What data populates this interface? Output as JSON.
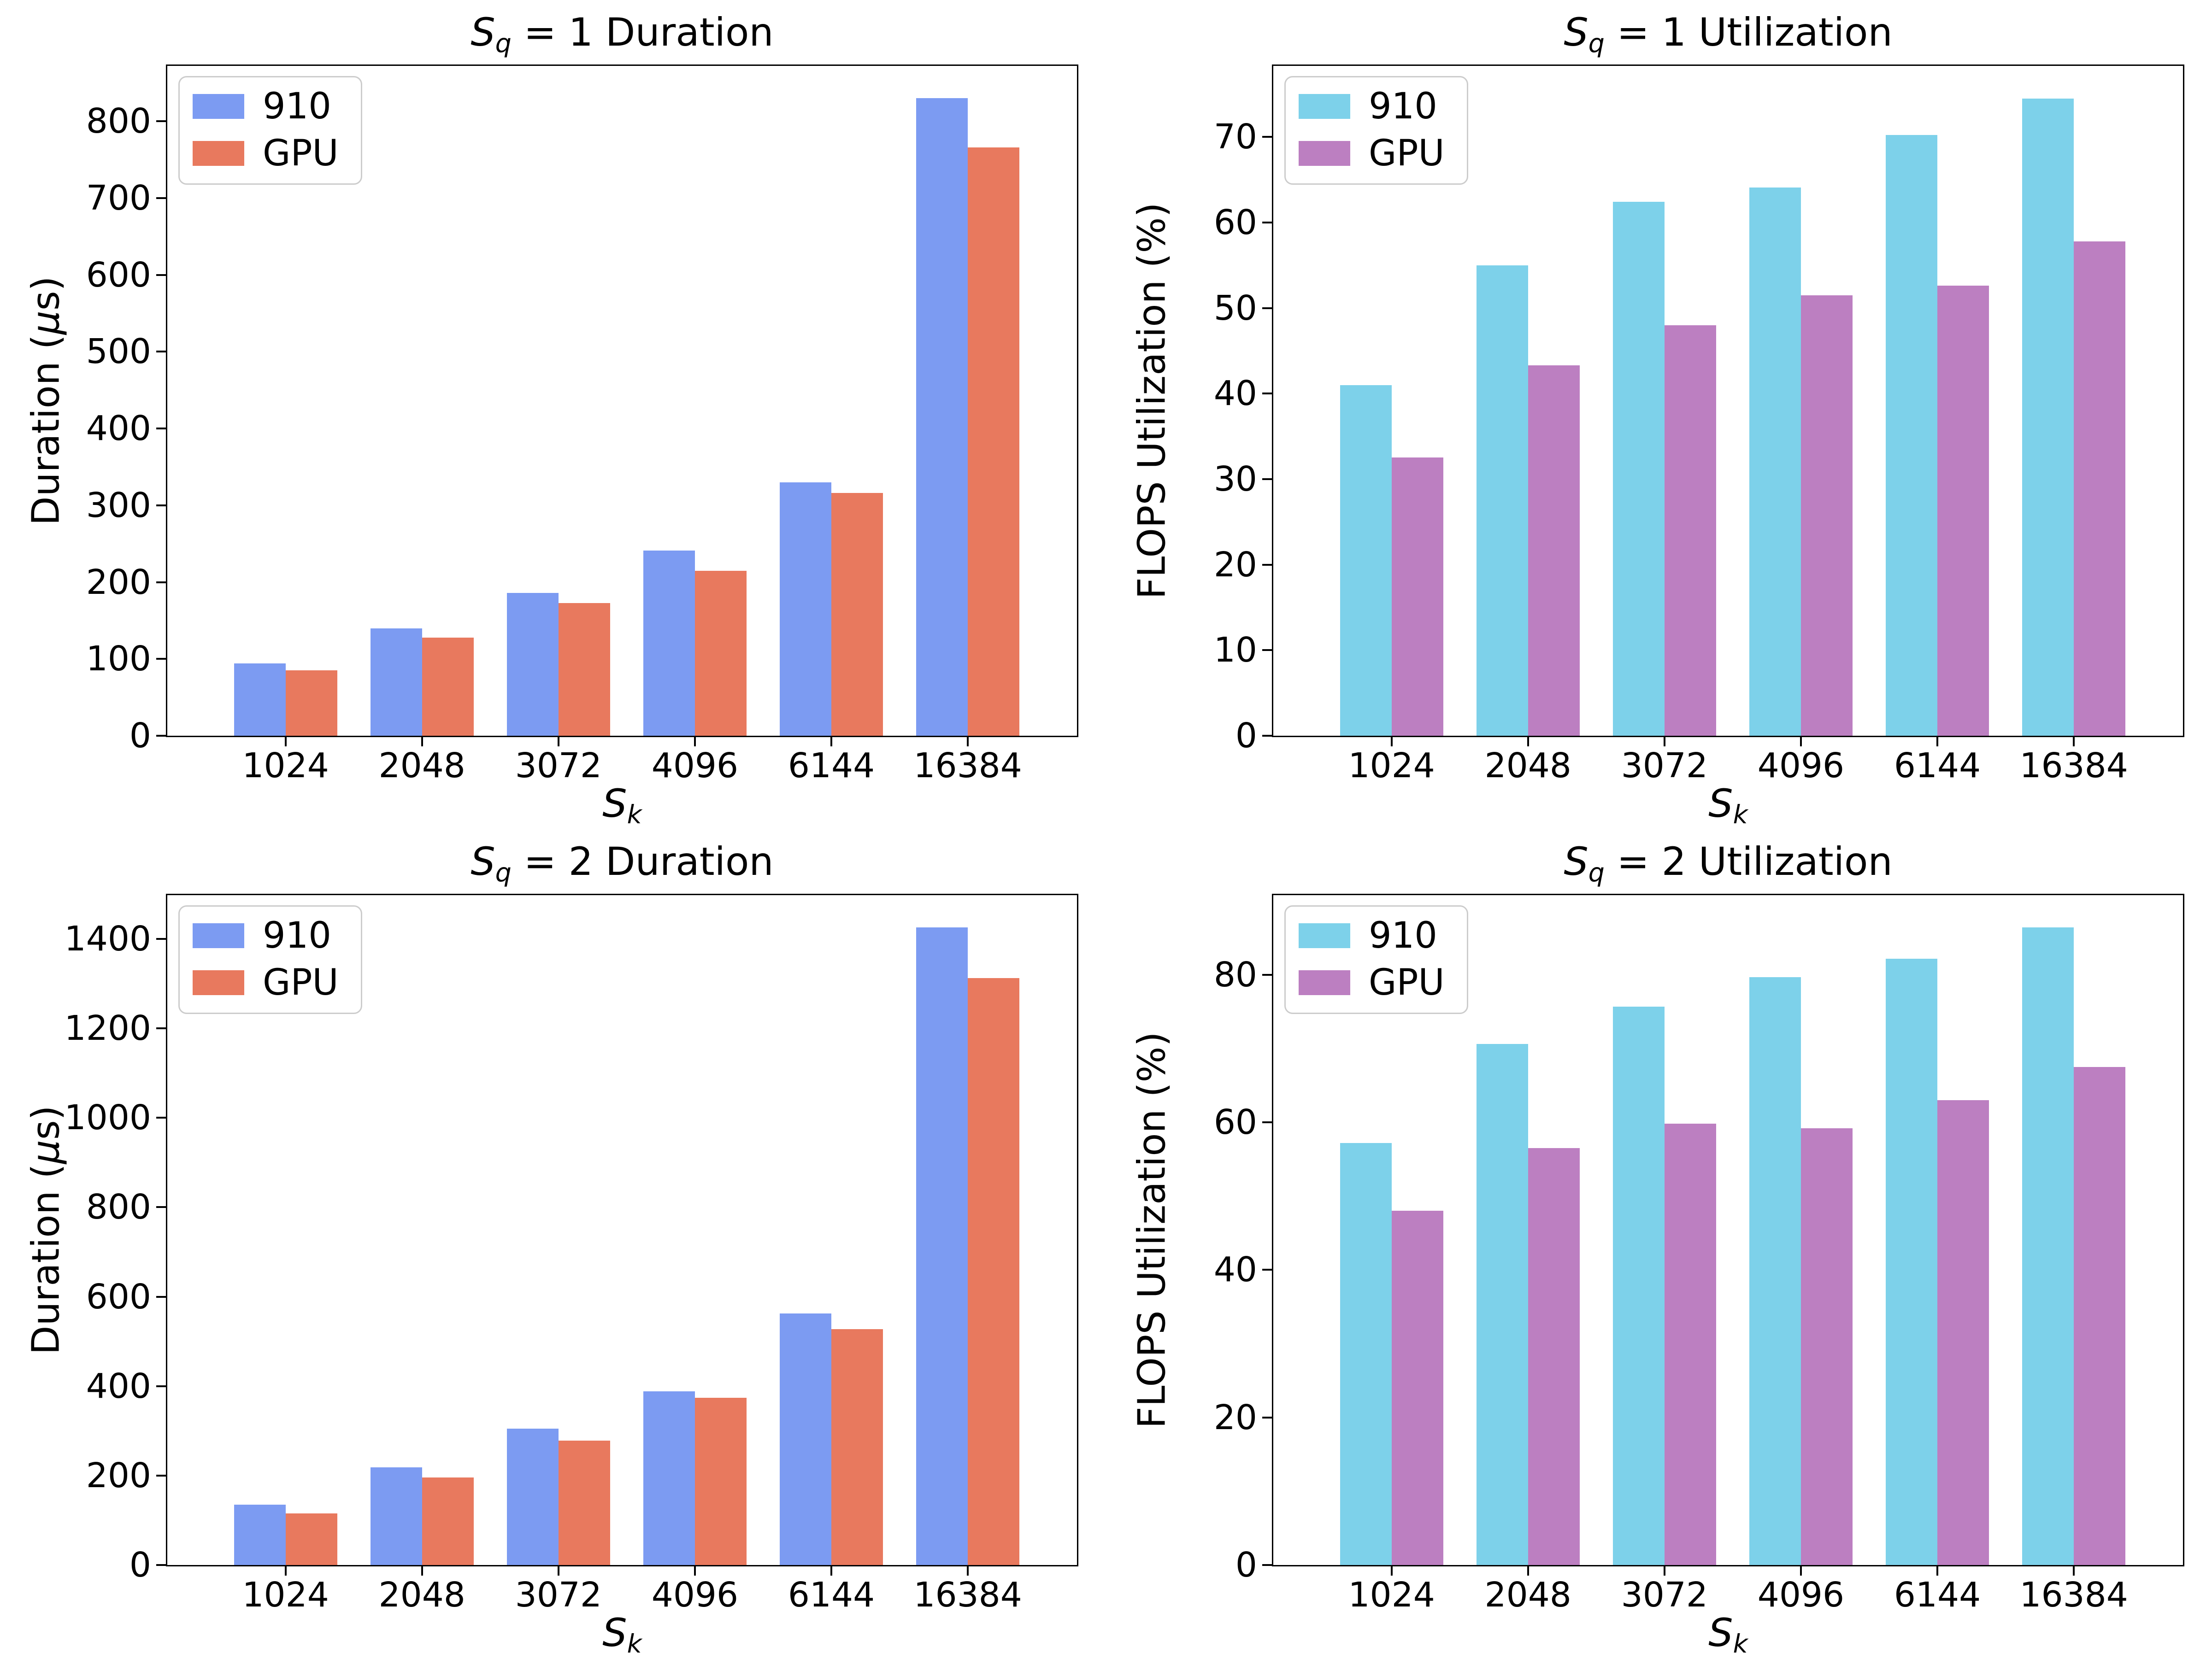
{
  "figure_background": "#ffffff",
  "series_names": [
    "910",
    "GPU"
  ],
  "chart_data": [
    {
      "type": "bar",
      "title_parts": [
        [
          "S",
          "i"
        ],
        [
          "q",
          "sub"
        ],
        [
          " = 1 Duration",
          "n"
        ]
      ],
      "ylabel_parts": [
        [
          "Duration (",
          "n"
        ],
        [
          "μ",
          "i"
        ],
        [
          "s)",
          "n"
        ]
      ],
      "xlabel_parts": [
        [
          "S",
          "i"
        ],
        [
          "k",
          "sub"
        ]
      ],
      "categories": [
        "1024",
        "2048",
        "3072",
        "4096",
        "6144",
        "16384"
      ],
      "series": [
        {
          "name": "910",
          "color": "#7c9bf2",
          "values": [
            94,
            140,
            186,
            241,
            330,
            830
          ]
        },
        {
          "name": "GPU",
          "color": "#e8795e",
          "values": [
            85,
            128,
            173,
            215,
            316,
            766
          ]
        }
      ],
      "yticks": [
        0,
        100,
        200,
        300,
        400,
        500,
        600,
        700,
        800
      ],
      "ylim": [
        0,
        872
      ],
      "grid": false,
      "legend_position": "upper left"
    },
    {
      "type": "bar",
      "title_parts": [
        [
          "S",
          "i"
        ],
        [
          "q",
          "sub"
        ],
        [
          " = 1 Utilization",
          "n"
        ]
      ],
      "ylabel_parts": [
        [
          "FLOPS Utilization (%)",
          "n"
        ]
      ],
      "xlabel_parts": [
        [
          "S",
          "i"
        ],
        [
          "k",
          "sub"
        ]
      ],
      "categories": [
        "1024",
        "2048",
        "3072",
        "4096",
        "6144",
        "16384"
      ],
      "series": [
        {
          "name": "910",
          "color": "#7dd1ea",
          "values": [
            41.0,
            55.0,
            62.4,
            64.1,
            70.2,
            74.5
          ]
        },
        {
          "name": "GPU",
          "color": "#bc7fc1",
          "values": [
            32.5,
            43.3,
            48.0,
            51.5,
            52.6,
            57.8
          ]
        }
      ],
      "yticks": [
        0,
        10,
        20,
        30,
        40,
        50,
        60,
        70
      ],
      "ylim": [
        0,
        78.3
      ],
      "grid": false,
      "legend_position": "upper left"
    },
    {
      "type": "bar",
      "title_parts": [
        [
          "S",
          "i"
        ],
        [
          "q",
          "sub"
        ],
        [
          " = 2 Duration",
          "n"
        ]
      ],
      "ylabel_parts": [
        [
          "Duration (",
          "n"
        ],
        [
          "μ",
          "i"
        ],
        [
          "s)",
          "n"
        ]
      ],
      "xlabel_parts": [
        [
          "S",
          "i"
        ],
        [
          "k",
          "sub"
        ]
      ],
      "categories": [
        "1024",
        "2048",
        "3072",
        "4096",
        "6144",
        "16384"
      ],
      "series": [
        {
          "name": "910",
          "color": "#7c9bf2",
          "values": [
            135,
            218,
            305,
            388,
            563,
            1426
          ]
        },
        {
          "name": "GPU",
          "color": "#e8795e",
          "values": [
            115,
            196,
            278,
            374,
            527,
            1313
          ]
        }
      ],
      "yticks": [
        0,
        200,
        400,
        600,
        800,
        1000,
        1200,
        1400
      ],
      "ylim": [
        0,
        1498
      ],
      "grid": false,
      "legend_position": "upper left"
    },
    {
      "type": "bar",
      "title_parts": [
        [
          "S",
          "i"
        ],
        [
          "q",
          "sub"
        ],
        [
          " = 2 Utilization",
          "n"
        ]
      ],
      "ylabel_parts": [
        [
          "FLOPS Utilization (%)",
          "n"
        ]
      ],
      "xlabel_parts": [
        [
          "S",
          "i"
        ],
        [
          "k",
          "sub"
        ]
      ],
      "categories": [
        "1024",
        "2048",
        "3072",
        "4096",
        "6144",
        "16384"
      ],
      "series": [
        {
          "name": "910",
          "color": "#7dd1ea",
          "values": [
            57.2,
            70.6,
            75.7,
            79.7,
            82.2,
            86.4
          ]
        },
        {
          "name": "GPU",
          "color": "#bc7fc1",
          "values": [
            48.0,
            56.5,
            59.8,
            59.2,
            63.0,
            67.5
          ]
        }
      ],
      "yticks": [
        0,
        20,
        40,
        60,
        80
      ],
      "ylim": [
        0,
        90.8
      ],
      "grid": false,
      "legend_position": "upper left"
    }
  ]
}
